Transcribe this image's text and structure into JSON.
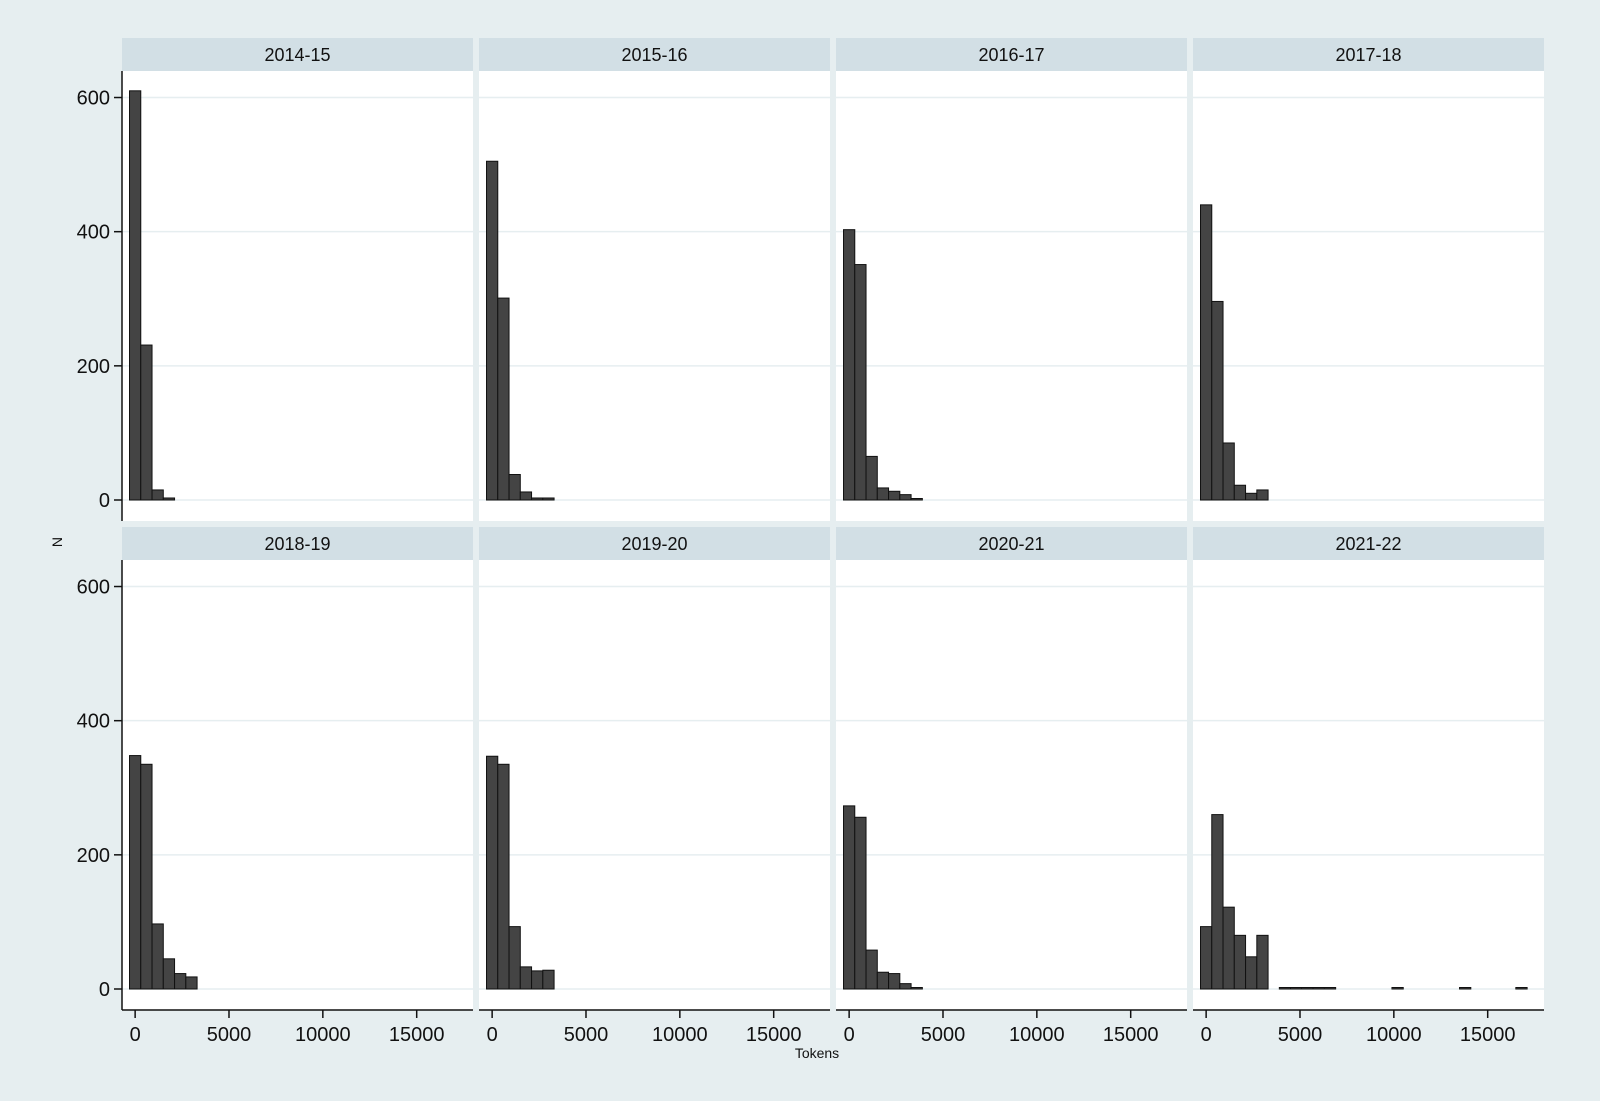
{
  "chart_data": {
    "type": "bar",
    "subtype": "histogram",
    "layout": "2x4 small multiples",
    "xlabel": "Tokens",
    "ylabel": "N",
    "xlim": [
      -700,
      18000
    ],
    "ylim": [
      0,
      640
    ],
    "xticks": [
      0,
      5000,
      10000,
      15000
    ],
    "yticks": [
      0,
      200,
      400,
      600
    ],
    "grid": true,
    "bar_color": "#444444",
    "bin_edges": [
      -300,
      300,
      900,
      1500,
      2100,
      2700,
      3300,
      3900,
      4500,
      5100,
      5700,
      6300,
      6900,
      7500,
      8100,
      8700,
      9300,
      9900,
      10500,
      11100,
      11700,
      12300,
      12900,
      13500,
      14100,
      14700,
      15300,
      15900,
      16500,
      17100,
      17700
    ],
    "panels": [
      {
        "title": "2014-15",
        "counts": [
          610,
          231,
          15,
          3,
          0,
          0,
          0,
          0,
          0,
          0,
          0,
          0,
          0,
          0,
          0,
          0,
          0,
          0,
          0,
          0,
          0,
          0,
          0,
          0,
          0,
          0,
          0,
          0,
          0,
          0
        ]
      },
      {
        "title": "2015-16",
        "counts": [
          505,
          301,
          38,
          12,
          3,
          3,
          0,
          0,
          0,
          0,
          0,
          0,
          0,
          0,
          0,
          0,
          0,
          0,
          0,
          0,
          0,
          0,
          0,
          0,
          0,
          0,
          0,
          0,
          0,
          0
        ]
      },
      {
        "title": "2016-17",
        "counts": [
          403,
          351,
          65,
          18,
          13,
          8,
          2,
          0,
          0,
          0,
          0,
          0,
          0,
          0,
          0,
          0,
          0,
          0,
          0,
          0,
          0,
          0,
          0,
          0,
          0,
          0,
          0,
          0,
          0,
          0
        ]
      },
      {
        "title": "2017-18",
        "counts": [
          440,
          296,
          85,
          22,
          10,
          15,
          0,
          0,
          0,
          0,
          0,
          0,
          0,
          0,
          0,
          0,
          0,
          0,
          0,
          0,
          0,
          0,
          0,
          0,
          0,
          0,
          0,
          0,
          0,
          0
        ]
      },
      {
        "title": "2018-19",
        "counts": [
          348,
          335,
          97,
          45,
          23,
          18,
          0,
          0,
          0,
          0,
          0,
          0,
          0,
          0,
          0,
          0,
          0,
          0,
          0,
          0,
          0,
          0,
          0,
          0,
          0,
          0,
          0,
          0,
          0,
          0
        ]
      },
      {
        "title": "2019-20",
        "counts": [
          347,
          335,
          93,
          33,
          27,
          28,
          0,
          0,
          0,
          0,
          0,
          0,
          0,
          0,
          0,
          0,
          0,
          0,
          0,
          0,
          0,
          0,
          0,
          0,
          0,
          0,
          0,
          0,
          0,
          0
        ]
      },
      {
        "title": "2020-21",
        "counts": [
          273,
          256,
          58,
          25,
          23,
          8,
          2,
          0,
          0,
          0,
          0,
          0,
          0,
          0,
          0,
          0,
          0,
          0,
          0,
          0,
          0,
          0,
          0,
          0,
          0,
          0,
          0,
          0,
          0,
          0
        ]
      },
      {
        "title": "2021-22",
        "counts": [
          93,
          260,
          122,
          80,
          48,
          80,
          0,
          1,
          1,
          2,
          2,
          1,
          0,
          0,
          0,
          0,
          0,
          1,
          0,
          0,
          0,
          0,
          0,
          1,
          0,
          0,
          0,
          0,
          1,
          0
        ]
      }
    ]
  }
}
